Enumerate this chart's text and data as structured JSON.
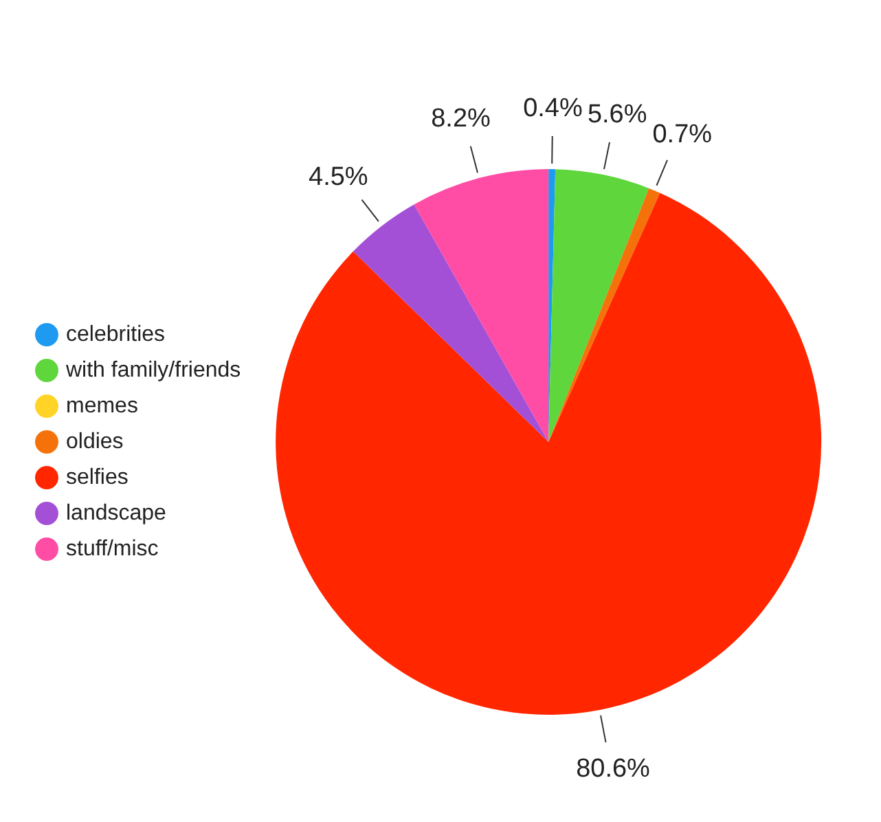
{
  "chart_data": {
    "type": "pie",
    "categories": [
      "celebrities",
      "with family/friends",
      "memes",
      "oldies",
      "selfies",
      "landscape",
      "stuff/misc"
    ],
    "values": [
      0.4,
      5.6,
      0,
      0.7,
      80.6,
      4.5,
      8.2
    ],
    "colors": [
      "#1e9bf0",
      "#5fd63c",
      "#ffd426",
      "#f5720a",
      "#ff2600",
      "#a450d6",
      "#ff4da6"
    ],
    "value_labels": [
      "0.4%",
      "5.6%",
      null,
      "0.7%",
      "80.6%",
      "4.5%",
      "8.2%"
    ],
    "legend": "left"
  }
}
